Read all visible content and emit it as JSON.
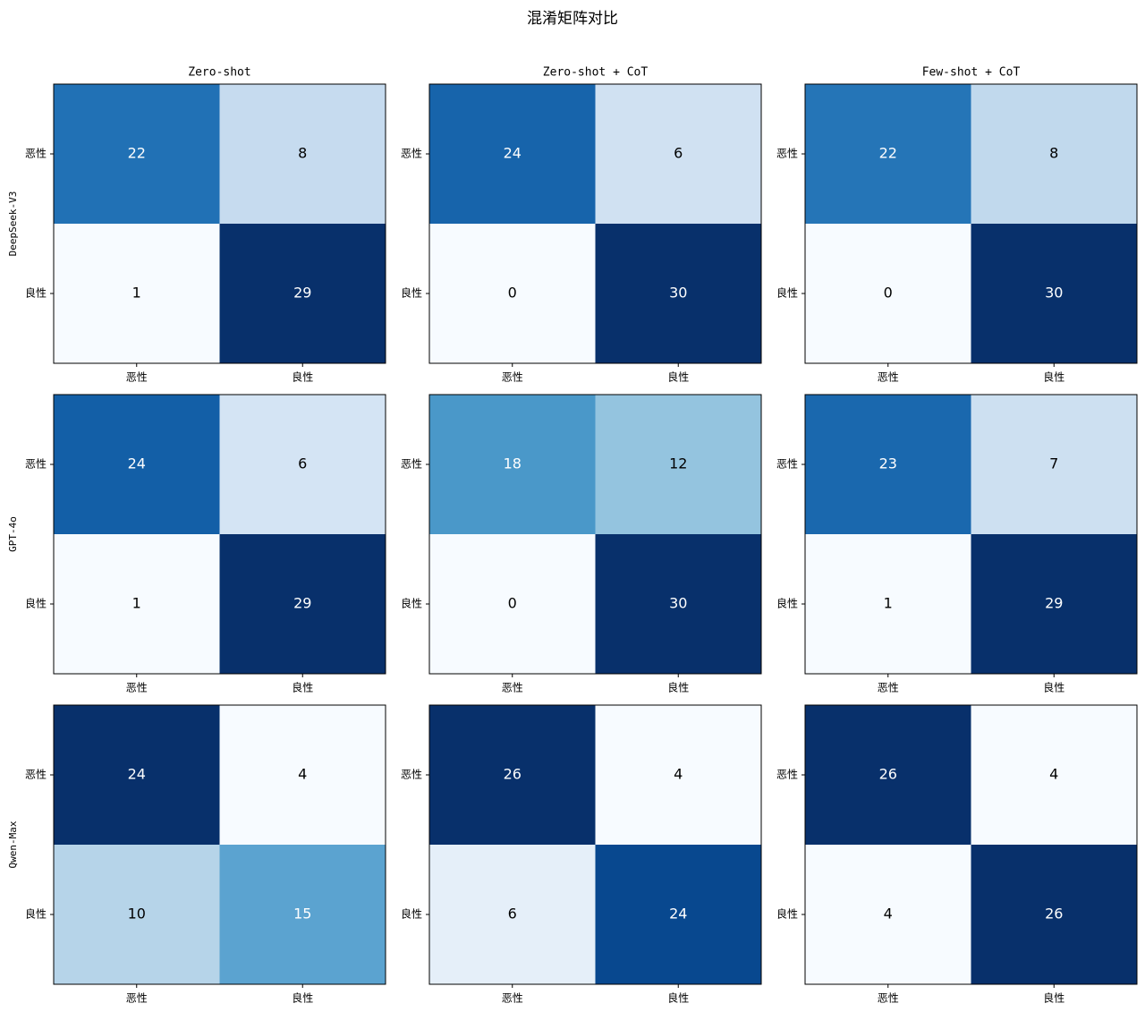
{
  "chart_data": {
    "type": "heatmap",
    "title": "混淆矩阵对比",
    "colormap": "Blues",
    "columns": [
      "Zero-shot",
      "Zero-shot + CoT",
      "Few-shot + CoT"
    ],
    "rows": [
      "DeepSeek-V3",
      "GPT-4o",
      "Qwen-Max"
    ],
    "tick_labels": [
      "恶性",
      "良性"
    ],
    "panels": [
      [
        {
          "matrix": [
            [
              22,
              8
            ],
            [
              1,
              29
            ]
          ]
        },
        {
          "matrix": [
            [
              24,
              6
            ],
            [
              0,
              30
            ]
          ]
        },
        {
          "matrix": [
            [
              22,
              8
            ],
            [
              0,
              30
            ]
          ]
        }
      ],
      [
        {
          "matrix": [
            [
              24,
              6
            ],
            [
              1,
              29
            ]
          ]
        },
        {
          "matrix": [
            [
              18,
              12
            ],
            [
              0,
              30
            ]
          ]
        },
        {
          "matrix": [
            [
              23,
              7
            ],
            [
              1,
              29
            ]
          ]
        }
      ],
      [
        {
          "matrix": [
            [
              24,
              4
            ],
            [
              10,
              15
            ]
          ]
        },
        {
          "matrix": [
            [
              26,
              4
            ],
            [
              6,
              24
            ]
          ]
        },
        {
          "matrix": [
            [
              26,
              4
            ],
            [
              4,
              26
            ]
          ]
        }
      ]
    ]
  }
}
